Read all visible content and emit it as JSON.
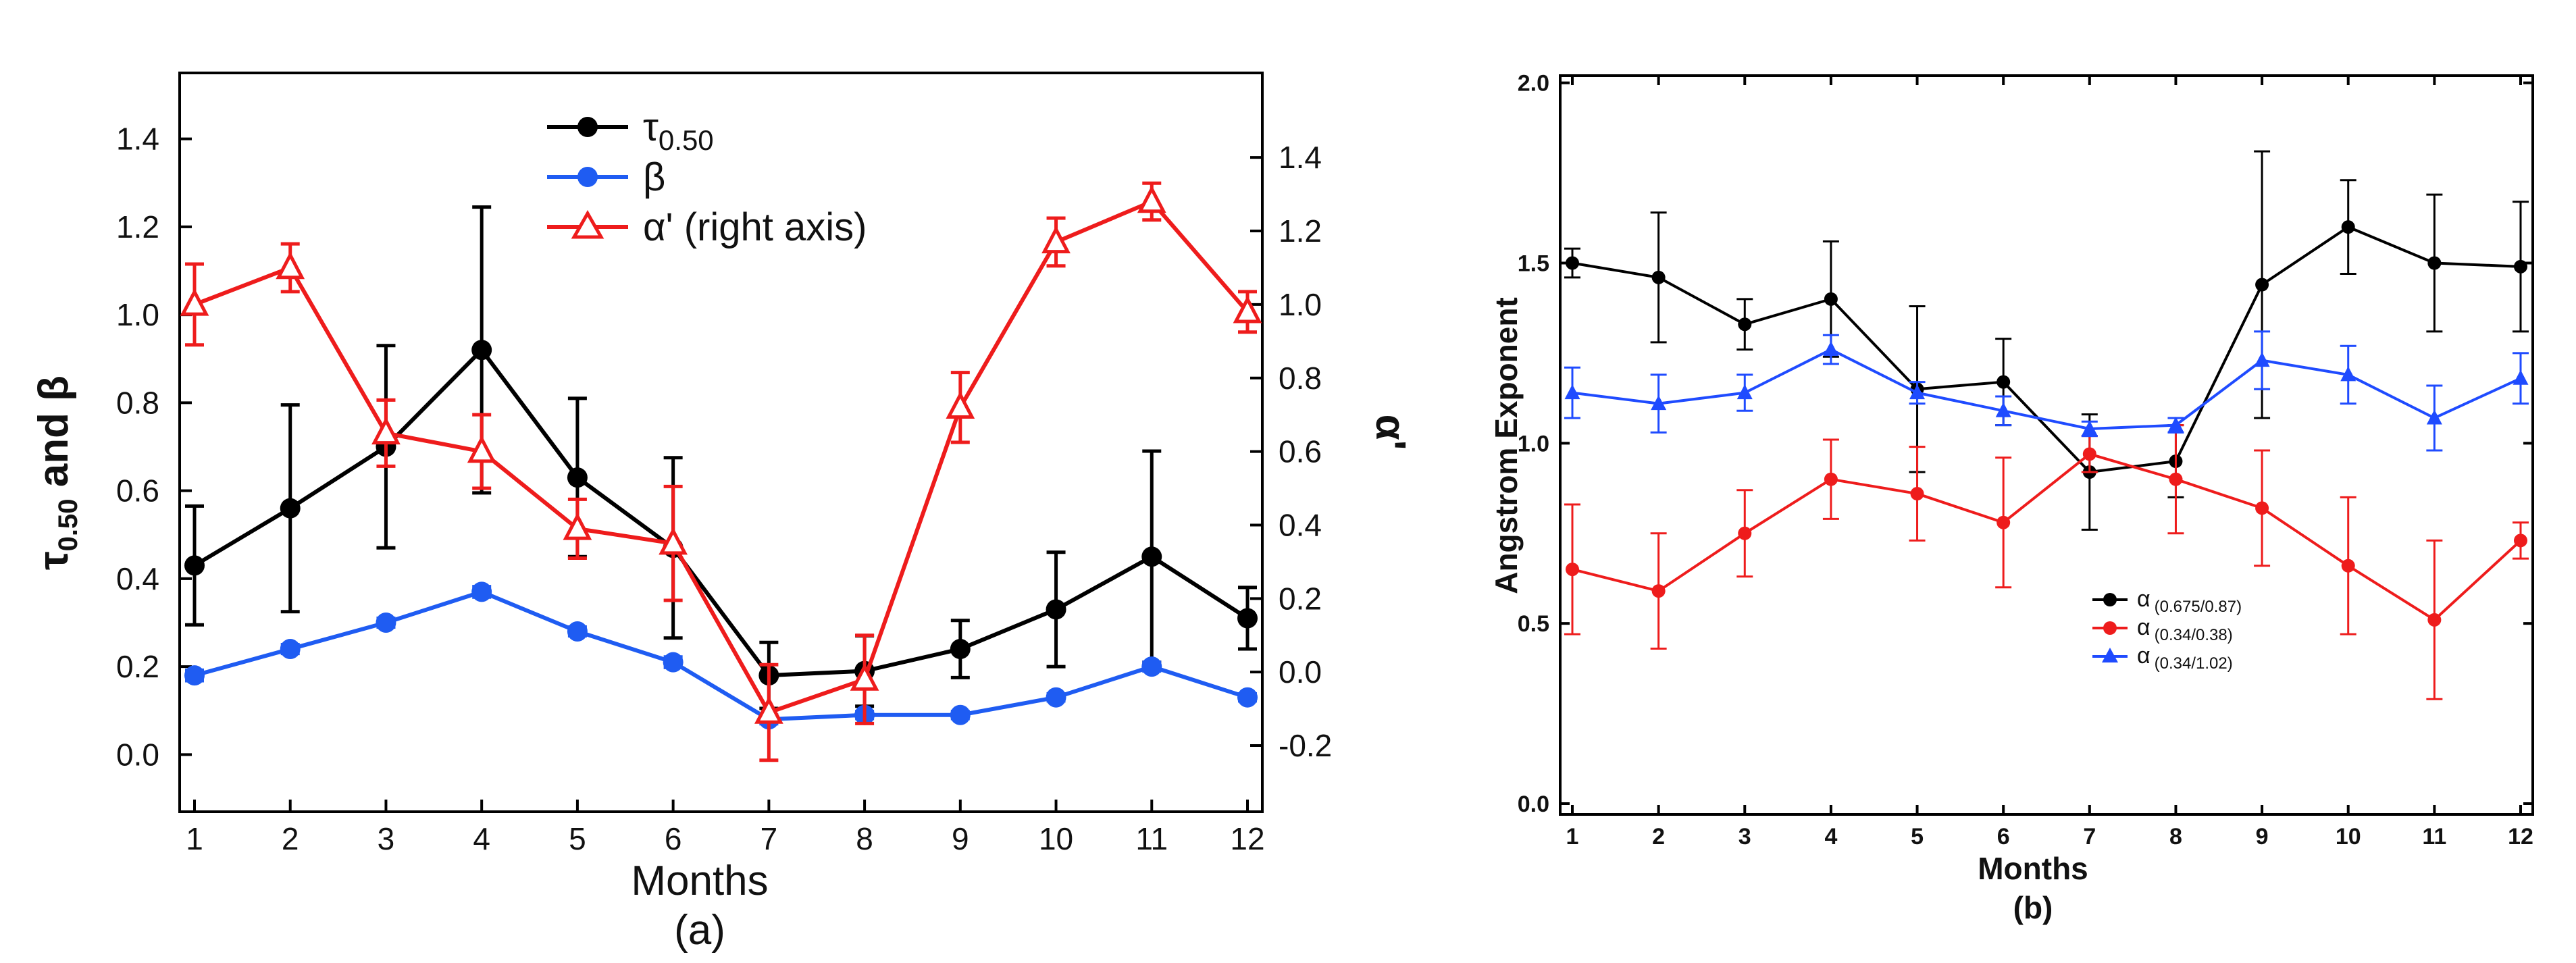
{
  "chart_data": [
    {
      "type": "line",
      "panel_label": "(a)",
      "xlabel": "Months",
      "ylabel_parts": [
        "τ",
        "0.50",
        " and β"
      ],
      "y2label": "α'",
      "categories": [
        "1",
        "2",
        "3",
        "4",
        "5",
        "6",
        "7",
        "8",
        "9",
        "10",
        "11",
        "12"
      ],
      "ylim": [
        -0.13,
        1.55
      ],
      "yticks": [
        "0.0",
        "0.2",
        "0.4",
        "0.6",
        "0.8",
        "1.0",
        "1.2",
        "1.4"
      ],
      "y2lim": [
        -0.38,
        1.63
      ],
      "y2ticks": [
        "-0.2",
        "0.0",
        "0.2",
        "0.4",
        "0.6",
        "0.8",
        "1.0",
        "1.2",
        "1.4"
      ],
      "series": [
        {
          "name": "τ0.50",
          "legend_parts": [
            "τ",
            "0.50",
            ""
          ],
          "color": "#000000",
          "marker": "circle",
          "axis": "left",
          "values": [
            0.43,
            0.56,
            0.7,
            0.92,
            0.63,
            0.47,
            0.18,
            0.19,
            0.24,
            0.33,
            0.45,
            0.31
          ],
          "errors": [
            0.135,
            0.235,
            0.23,
            0.325,
            0.18,
            0.205,
            0.075,
            0.08,
            0.065,
            0.13,
            0.24,
            0.07
          ]
        },
        {
          "name": "β",
          "legend_parts": [
            "β",
            "",
            ""
          ],
          "color": "#1f5cf2",
          "marker": "circle",
          "axis": "left",
          "values": [
            0.18,
            0.24,
            0.3,
            0.37,
            0.28,
            0.21,
            0.08,
            0.09,
            0.09,
            0.13,
            0.2,
            0.13
          ],
          "errors": [
            0.012,
            0.01,
            0.01,
            0.012,
            0.01,
            0.012,
            0.01,
            0.008,
            0.008,
            0.008,
            0.01,
            0.008
          ]
        },
        {
          "name": "α' (right axis)",
          "legend_parts": [
            "α' (right axis)",
            "",
            ""
          ],
          "color": "#ee1c1c",
          "marker": "triangle-open",
          "axis": "right",
          "values": [
            1.0,
            1.1,
            0.65,
            0.6,
            0.39,
            0.35,
            -0.11,
            -0.02,
            0.72,
            1.17,
            1.28,
            0.98
          ],
          "errors": [
            0.11,
            0.065,
            0.09,
            0.1,
            0.08,
            0.155,
            0.13,
            0.12,
            0.095,
            0.065,
            0.05,
            0.055
          ]
        }
      ]
    },
    {
      "type": "line",
      "panel_label": "(b)",
      "xlabel": "Months",
      "ylabel": "Angstrom Exponent",
      "categories": [
        "1",
        "2",
        "3",
        "4",
        "5",
        "6",
        "7",
        "8",
        "9",
        "10",
        "11",
        "12"
      ],
      "ylim": [
        -0.03,
        2.02
      ],
      "yticks": [
        "0.0",
        "0.5",
        "1.0",
        "1.5",
        "2.0"
      ],
      "series": [
        {
          "name": "α (0.675/0.87)",
          "legend_parts": [
            "α",
            "(0.675/0.87)"
          ],
          "color": "#000000",
          "marker": "circle",
          "values": [
            1.5,
            1.46,
            1.33,
            1.4,
            1.15,
            1.17,
            0.92,
            0.95,
            1.44,
            1.6,
            1.5,
            1.49
          ],
          "errors": [
            0.04,
            0.18,
            0.07,
            0.16,
            0.23,
            0.12,
            0.16,
            0.1,
            0.37,
            0.13,
            0.19,
            0.18
          ]
        },
        {
          "name": "α (0.34/0.38)",
          "legend_parts": [
            "α",
            "(0.34/0.38)"
          ],
          "color": "#ee1c1c",
          "marker": "circle",
          "values": [
            0.65,
            0.59,
            0.75,
            0.9,
            0.86,
            0.78,
            0.97,
            0.9,
            0.82,
            0.66,
            0.51,
            0.73
          ],
          "errors": [
            0.18,
            0.16,
            0.12,
            0.11,
            0.13,
            0.18,
            0.05,
            0.15,
            0.16,
            0.19,
            0.22,
            0.05
          ]
        },
        {
          "name": "α (0.34/1.02)",
          "legend_parts": [
            "α",
            "(0.34/1.02)"
          ],
          "color": "#1f4bff",
          "marker": "triangle",
          "values": [
            1.14,
            1.11,
            1.14,
            1.26,
            1.14,
            1.09,
            1.04,
            1.05,
            1.23,
            1.19,
            1.07,
            1.18
          ],
          "errors": [
            0.07,
            0.08,
            0.05,
            0.04,
            0.03,
            0.04,
            0.02,
            0.02,
            0.08,
            0.08,
            0.09,
            0.07
          ]
        }
      ]
    }
  ]
}
